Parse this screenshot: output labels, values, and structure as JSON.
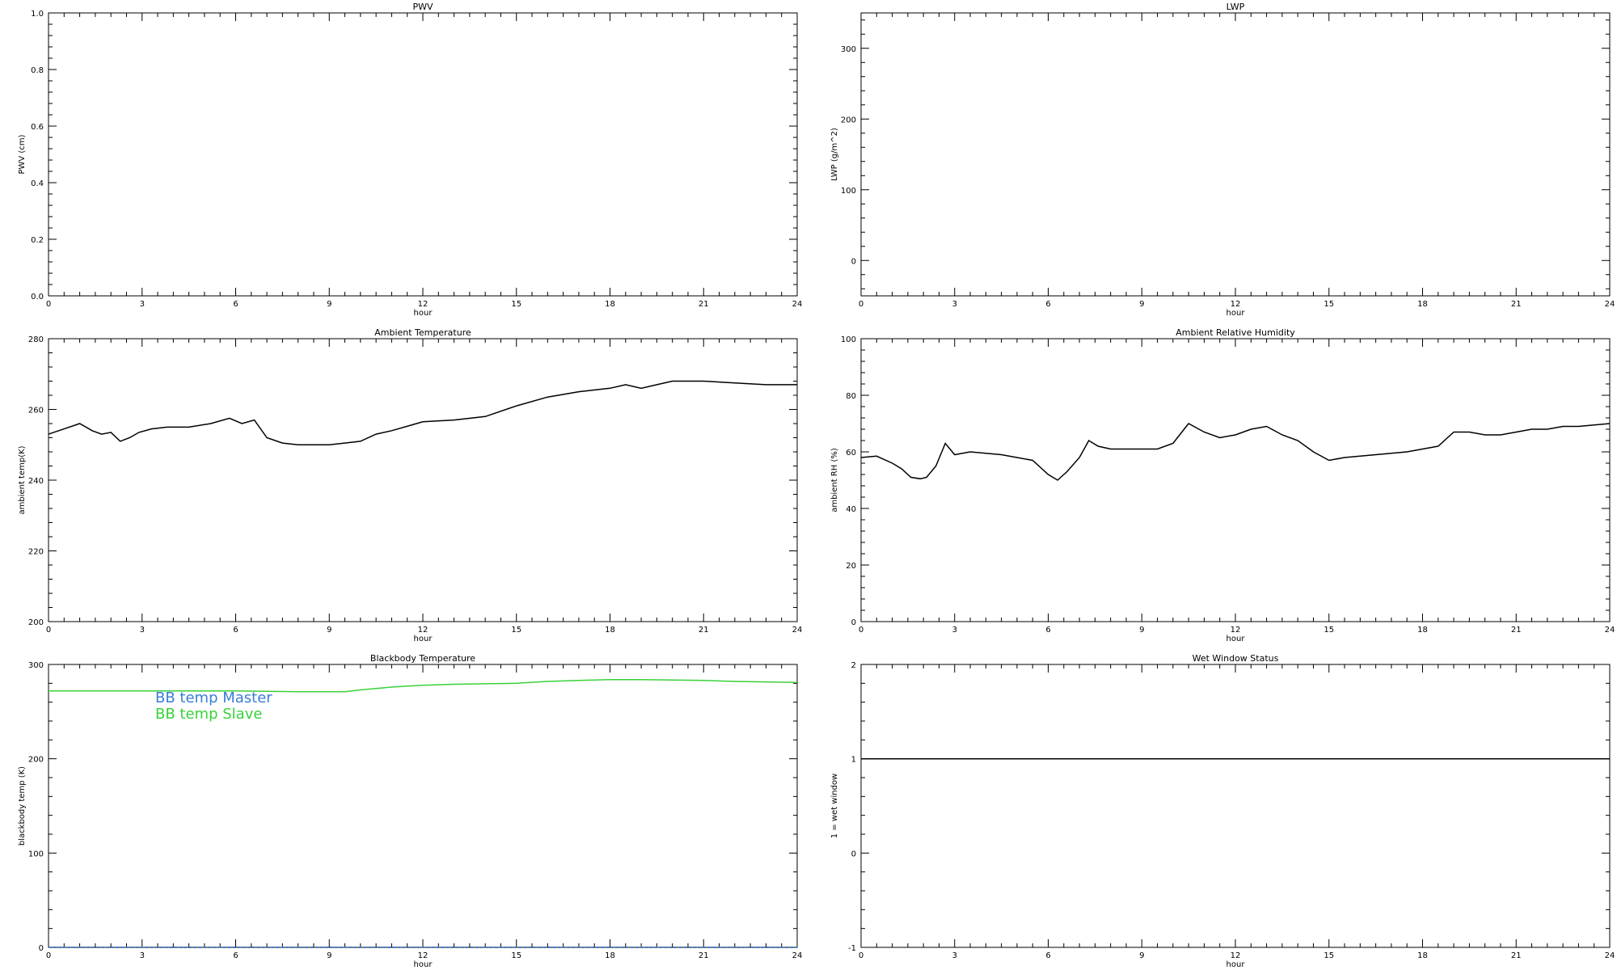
{
  "chart_data": [
    {
      "type": "line",
      "title": "PWV",
      "xlabel": "hour",
      "ylabel": "PWV (cm)",
      "xlim": [
        0,
        24
      ],
      "ylim": [
        0,
        1
      ],
      "xticks": [
        0,
        3,
        6,
        9,
        12,
        15,
        18,
        21,
        24
      ],
      "yticks": [
        0,
        0.2,
        0.4,
        0.6,
        0.8,
        1.0
      ],
      "ytick_labels": [
        "0.0",
        "0.2",
        "0.4",
        "0.6",
        "0.8",
        "1.0"
      ],
      "series": []
    },
    {
      "type": "line",
      "title": "LWP",
      "xlabel": "hour",
      "ylabel": "LWP (g/m^2)",
      "xlim": [
        0,
        24
      ],
      "ylim": [
        -50,
        350
      ],
      "xticks": [
        0,
        3,
        6,
        9,
        12,
        15,
        18,
        21,
        24
      ],
      "yticks": [
        0,
        100,
        200,
        300
      ],
      "ytick_labels": [
        "0",
        "100",
        "200",
        "300"
      ],
      "series": []
    },
    {
      "type": "line",
      "title": "Ambient Temperature",
      "xlabel": "hour",
      "ylabel": "ambient temp(K)",
      "xlim": [
        0,
        24
      ],
      "ylim": [
        200,
        280
      ],
      "xticks": [
        0,
        3,
        6,
        9,
        12,
        15,
        18,
        21,
        24
      ],
      "yticks": [
        200,
        220,
        240,
        260,
        280
      ],
      "ytick_labels": [
        "200",
        "220",
        "240",
        "260",
        "280"
      ],
      "series": [
        {
          "color": "#000000",
          "x": [
            0,
            0.5,
            1.0,
            1.4,
            1.7,
            2.0,
            2.3,
            2.6,
            2.9,
            3.3,
            3.8,
            4.5,
            5.2,
            5.8,
            6.2,
            6.6,
            7.0,
            7.5,
            8.0,
            8.5,
            9.0,
            9.5,
            10.0,
            10.5,
            11.0,
            12.0,
            13.0,
            14.0,
            15.0,
            16.0,
            17.0,
            18.0,
            18.5,
            19.0,
            19.5,
            20.0,
            21.0,
            22.0,
            23.0,
            24.0
          ],
          "y": [
            253,
            254.5,
            256,
            254,
            253,
            253.5,
            251,
            252,
            253.5,
            254.5,
            255,
            255,
            256,
            257.5,
            256,
            257,
            252,
            250.5,
            250,
            250,
            250,
            250.5,
            251,
            253,
            254,
            256.5,
            257,
            258,
            261,
            263.5,
            265,
            266,
            267,
            266,
            267,
            268,
            268,
            267.5,
            267,
            267
          ]
        }
      ]
    },
    {
      "type": "line",
      "title": "Ambient Relative Humidity",
      "xlabel": "hour",
      "ylabel": "ambient RH (%)",
      "xlim": [
        0,
        24
      ],
      "ylim": [
        0,
        100
      ],
      "xticks": [
        0,
        3,
        6,
        9,
        12,
        15,
        18,
        21,
        24
      ],
      "yticks": [
        0,
        20,
        40,
        60,
        80,
        100
      ],
      "ytick_labels": [
        "0",
        "20",
        "40",
        "60",
        "80",
        "100"
      ],
      "series": [
        {
          "color": "#000000",
          "x": [
            0,
            0.5,
            1.0,
            1.3,
            1.6,
            1.9,
            2.1,
            2.4,
            2.7,
            3.0,
            3.5,
            4.0,
            4.5,
            5.0,
            5.5,
            6.0,
            6.3,
            6.6,
            7.0,
            7.3,
            7.6,
            8.0,
            8.5,
            9.0,
            9.5,
            10.0,
            10.5,
            11.0,
            11.5,
            12.0,
            12.5,
            13.0,
            13.5,
            14.0,
            14.5,
            15.0,
            15.5,
            16.0,
            16.5,
            17.0,
            17.5,
            18.0,
            18.5,
            19.0,
            19.5,
            20.0,
            20.5,
            21.0,
            21.5,
            22.0,
            22.5,
            23.0,
            23.5,
            24.0
          ],
          "y": [
            58,
            58.5,
            56,
            54,
            51,
            50.5,
            51,
            55,
            63,
            59,
            60,
            59.5,
            59,
            58,
            57,
            52,
            50,
            53,
            58,
            64,
            62,
            61,
            61,
            61,
            61,
            63,
            70,
            67,
            65,
            66,
            68,
            69,
            66,
            64,
            60,
            57,
            58,
            58.5,
            59,
            59.5,
            60,
            61,
            62,
            67,
            67,
            66,
            66,
            67,
            68,
            68,
            69,
            69,
            69.5,
            70
          ]
        }
      ]
    },
    {
      "type": "line",
      "title": "Blackbody Temperature",
      "xlabel": "hour",
      "ylabel": "blackbody temp (K)",
      "xlim": [
        0,
        24
      ],
      "ylim": [
        0,
        300
      ],
      "xticks": [
        0,
        3,
        6,
        9,
        12,
        15,
        18,
        21,
        24
      ],
      "yticks": [
        0,
        100,
        200,
        300
      ],
      "ytick_labels": [
        "0",
        "100",
        "200",
        "300"
      ],
      "legend": [
        "BB temp Master",
        "BB temp Slave"
      ],
      "series": [
        {
          "name": "BB temp Master",
          "color": "#3a7fd5",
          "x": [
            0,
            24
          ],
          "y": [
            0,
            0
          ]
        },
        {
          "name": "BB temp Slave",
          "color": "#39d13a",
          "x": [
            0,
            1,
            2,
            3,
            4,
            5,
            6,
            7,
            8,
            9,
            9.5,
            10,
            11,
            12,
            13,
            14,
            15,
            16,
            17,
            18,
            19,
            20,
            21,
            22,
            23,
            24
          ],
          "y": [
            272,
            272,
            272,
            272,
            272,
            272,
            272,
            271.5,
            271,
            271,
            271,
            273,
            276,
            278,
            279,
            279.5,
            280,
            282,
            283,
            284,
            284,
            283.5,
            283,
            282,
            281.5,
            281
          ]
        }
      ]
    },
    {
      "type": "line",
      "title": "Wet Window Status",
      "xlabel": "hour",
      "ylabel": "1 = wet window",
      "xlim": [
        0,
        24
      ],
      "ylim": [
        -1,
        2
      ],
      "xticks": [
        0,
        3,
        6,
        9,
        12,
        15,
        18,
        21,
        24
      ],
      "yticks": [
        -1,
        0,
        1,
        2
      ],
      "ytick_labels": [
        "-1",
        "0",
        "1",
        "2"
      ],
      "series": [
        {
          "color": "#000000",
          "x": [
            0,
            24
          ],
          "y": [
            1,
            1
          ]
        }
      ]
    }
  ]
}
